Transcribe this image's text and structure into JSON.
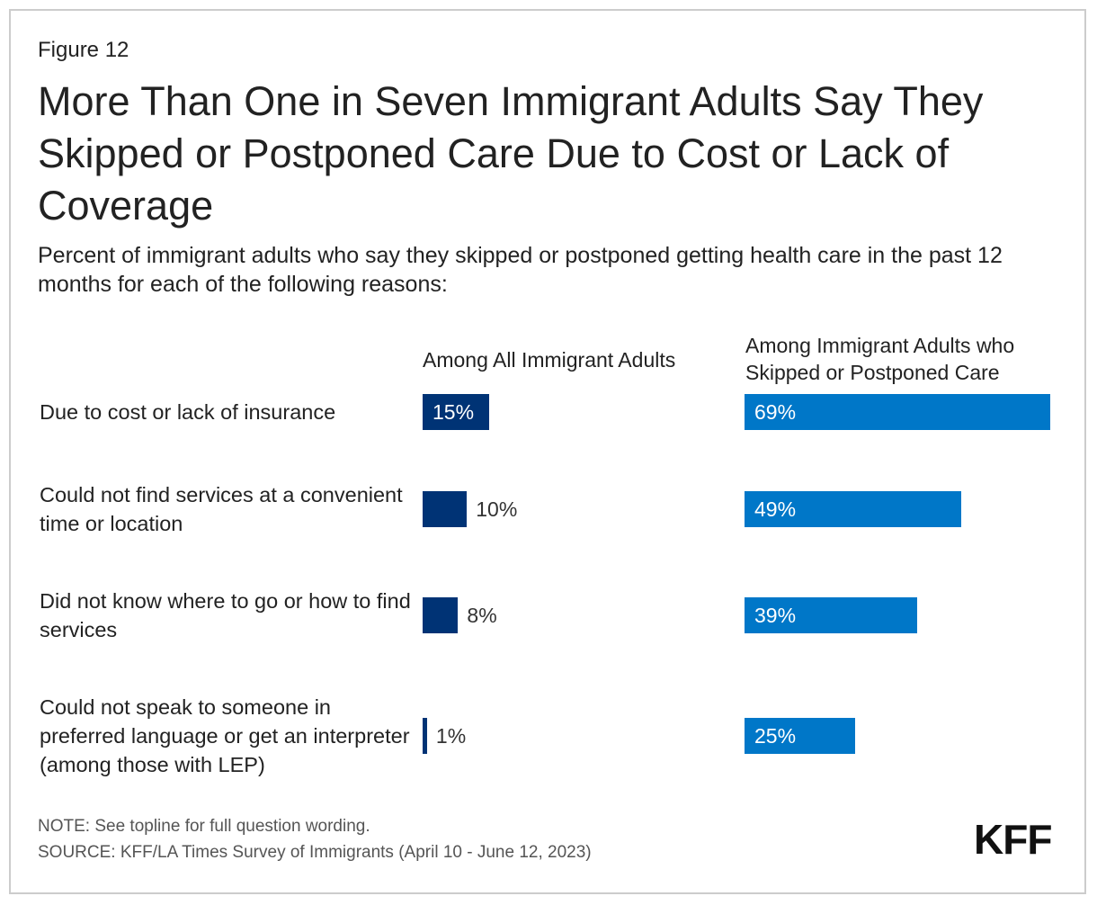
{
  "figure_label": "Figure 12",
  "title": "More Than One in Seven Immigrant Adults Say They Skipped or Postponed Care Due to Cost or Lack of Coverage",
  "subtitle": "Percent of immigrant adults who say they skipped or postponed getting health care in the past 12 months for each of the following reasons:",
  "note": "NOTE: See topline for full question wording.",
  "source": "SOURCE: KFF/LA Times Survey of Immigrants (April 10 - June 12, 2023)",
  "logo": "KFF",
  "colors": {
    "all_adults": "#003375",
    "skipped": "#0077c8"
  },
  "chart_data": {
    "type": "bar",
    "orientation": "horizontal",
    "categories": [
      "Due to cost or lack of insurance",
      "Could not find services at a convenient time or location",
      "Did not know where to go or how to find services",
      "Could not speak to someone in preferred language or get an interpreter (among those with LEP)"
    ],
    "series": [
      {
        "name": "Among All Immigrant Adults",
        "values": [
          15,
          10,
          8,
          1
        ],
        "labels": [
          "15%",
          "10%",
          "8%",
          "1%"
        ]
      },
      {
        "name": "Among Immigrant Adults who Skipped or Postponed Care",
        "values": [
          69,
          49,
          39,
          25
        ],
        "labels": [
          "69%",
          "49%",
          "39%",
          "25%"
        ]
      }
    ],
    "xlim": [
      0,
      69
    ],
    "grid": false,
    "legend": "column headers"
  }
}
